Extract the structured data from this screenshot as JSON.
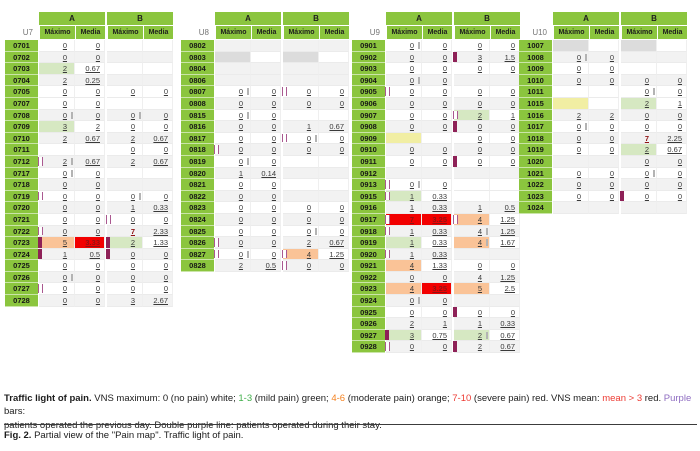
{
  "columns": {
    "group_a": "A",
    "group_b": "B",
    "max": "Máximo",
    "media": "Media"
  },
  "colors": {
    "header_green": "#8bc53e",
    "mild_pain_green": "#d6e8c2",
    "moderate_pain_orange": "#fac397",
    "severe_pain_red": "#f20000",
    "yellow_cell": "#f1eea3",
    "gray_cell": "#dcdcdc",
    "light_blue_cell": "#d8e8f3",
    "purple_bar": "#8e2157",
    "purple_line": "#aa5990",
    "mean_red_text": "#8f1313",
    "legend_green": "#3fae49",
    "legend_orange": "#f5821f",
    "legend_red": "#ed3b33",
    "legend_purple": "#8e6cc1"
  },
  "units": [
    {
      "name": "U7",
      "rows": [
        {
          "id": "0701",
          "a": {
            "mx": "0",
            "md": "0"
          }
        },
        {
          "id": "0702",
          "a": {
            "mx": "0",
            "md": "0"
          }
        },
        {
          "id": "0703",
          "a": {
            "mx": "2",
            "c": "g",
            "md": "0.67"
          }
        },
        {
          "id": "0704",
          "a": {
            "mx": "2",
            "c": "g",
            "md": "0.25"
          }
        },
        {
          "id": "0705",
          "a": {
            "mx": "0",
            "md": "0"
          },
          "b": {
            "mx": "0",
            "md": "0"
          }
        },
        {
          "id": "0707",
          "a": {
            "mx": "0",
            "md": "0"
          }
        },
        {
          "id": "0708",
          "a": {
            "mx": "0",
            "md": "0",
            "gb": true
          },
          "b": {
            "mx": "0",
            "md": "0",
            "gb": true
          }
        },
        {
          "id": "0709",
          "a": {
            "mx": "3",
            "c": "g",
            "md": "2"
          },
          "b": {
            "mx": "0",
            "md": "0"
          }
        },
        {
          "id": "0710",
          "a": {
            "mx": "2",
            "c": "g",
            "md": "0.67"
          },
          "b": {
            "mx": "2",
            "c": "g",
            "md": "0.67"
          }
        },
        {
          "id": "0711",
          "b": {
            "mx": "0",
            "md": "0"
          }
        },
        {
          "id": "0712",
          "a": {
            "mx": "2",
            "c": "g",
            "md": "0.67",
            "mk": "d",
            "gb": true
          },
          "b": {
            "mx": "2",
            "c": "g",
            "md": "0.67"
          }
        },
        {
          "id": "0717",
          "a": {
            "mx": "0",
            "md": "0",
            "gb": true
          }
        },
        {
          "id": "0718",
          "a": {
            "mx": "0",
            "md": "0"
          }
        },
        {
          "id": "0719",
          "a": {
            "mx": "0",
            "md": "0",
            "mk": "d"
          },
          "b": {
            "mx": "0",
            "md": "0",
            "gb": true
          }
        },
        {
          "id": "0720",
          "a": {
            "mx": "0",
            "md": "0"
          },
          "b": {
            "mx": "1",
            "c": "g",
            "md": "0.33"
          }
        },
        {
          "id": "0721",
          "a": {
            "mx": "0",
            "md": "0"
          },
          "b": {
            "mx": "0",
            "md": "0",
            "mk": "d"
          }
        },
        {
          "id": "0722",
          "a": {
            "mx": "0",
            "c": "b",
            "md": "0",
            "mk": "d"
          },
          "b": {
            "mx": "7",
            "c": "r",
            "md": "2.33"
          }
        },
        {
          "id": "0723",
          "a": {
            "mx": "5",
            "c": "o",
            "md": "3.33",
            "mdr": true,
            "mk": "s"
          },
          "b": {
            "mx": "2",
            "c": "g",
            "md": "1.33",
            "mk": "s"
          }
        },
        {
          "id": "0724",
          "a": {
            "mx": "1",
            "c": "g",
            "md": "0.5",
            "mk": "s"
          },
          "b": {
            "mx": "0",
            "md": "0",
            "mk": "s"
          }
        },
        {
          "id": "0725",
          "a": {
            "mx": "0",
            "md": "0"
          },
          "b": {
            "mx": "0",
            "md": "0"
          }
        },
        {
          "id": "0726",
          "a": {
            "mx": "0",
            "md": "0",
            "gb": true
          },
          "b": {
            "mx": "0",
            "md": "0"
          }
        },
        {
          "id": "0727",
          "a": {
            "mx": "0",
            "md": "0",
            "mk": "d"
          },
          "b": {
            "mx": "0",
            "md": "0"
          }
        },
        {
          "id": "0728",
          "a": {
            "mx": "0",
            "md": "0"
          },
          "b": {
            "mx": "3",
            "c": "g",
            "md": "2.67"
          }
        }
      ]
    },
    {
      "name": "U8",
      "rows": [
        {
          "id": "0802",
          "a": {
            "mx": null,
            "c": "gy"
          },
          "b": {
            "mx": null,
            "c": "gy"
          }
        },
        {
          "id": "0803",
          "a": {
            "mx": null,
            "c": "gy"
          },
          "b": {
            "mx": null,
            "c": "gy"
          }
        },
        {
          "id": "0804",
          "a": {
            "mx": null,
            "c": "gy"
          },
          "b": {
            "mx": null,
            "c": "gy"
          }
        },
        {
          "id": "0806",
          "a": {
            "mx": null,
            "c": "gy"
          },
          "b": {
            "mx": null,
            "c": "gy"
          }
        },
        {
          "id": "0807",
          "a": {
            "mx": "0",
            "md": "0",
            "gb": true
          },
          "b": {
            "mx": "0",
            "md": "0",
            "mk": "d"
          }
        },
        {
          "id": "0808",
          "a": {
            "mx": "0",
            "md": "0"
          },
          "b": {
            "mx": "0",
            "md": "0"
          }
        },
        {
          "id": "0815",
          "a": {
            "mx": "0",
            "md": "0",
            "gb": true
          }
        },
        {
          "id": "0816",
          "a": {
            "mx": "0",
            "md": "0"
          },
          "b": {
            "mx": "1",
            "c": "g",
            "md": "0.67"
          }
        },
        {
          "id": "0817",
          "a": {
            "mx": "0",
            "md": "0"
          },
          "b": {
            "mx": "0",
            "md": "0",
            "mk": "d",
            "gb": true
          }
        },
        {
          "id": "0818",
          "a": {
            "mx": "0",
            "md": "0",
            "mk": "d"
          },
          "b": {
            "mx": "0",
            "md": "0"
          }
        },
        {
          "id": "0819",
          "a": {
            "mx": "0",
            "md": "0",
            "gb": true
          }
        },
        {
          "id": "0820",
          "a": {
            "mx": "1",
            "c": "g",
            "md": "0.14"
          }
        },
        {
          "id": "0821",
          "a": {
            "mx": "0",
            "md": "0"
          }
        },
        {
          "id": "0822",
          "a": {
            "mx": "0",
            "md": "0"
          }
        },
        {
          "id": "0823",
          "a": {
            "mx": "0",
            "md": "0"
          },
          "b": {
            "mx": "0",
            "md": "0"
          }
        },
        {
          "id": "0824",
          "a": {
            "mx": "0",
            "md": "0"
          },
          "b": {
            "mx": "0",
            "md": "0"
          }
        },
        {
          "id": "0825",
          "a": {
            "mx": "0",
            "md": "0"
          },
          "b": {
            "mx": "0",
            "md": "0",
            "gb": true
          }
        },
        {
          "id": "0826",
          "a": {
            "mx": "0",
            "md": "0",
            "mk": "d"
          },
          "b": {
            "mx": "2",
            "c": "g",
            "md": "0.67"
          }
        },
        {
          "id": "0827",
          "a": {
            "mx": "0",
            "md": "0",
            "mk": "d",
            "gb": true
          },
          "b": {
            "mx": "4",
            "c": "o",
            "md": "1.25",
            "mk": "d"
          }
        },
        {
          "id": "0828",
          "a": {
            "mx": "2",
            "c": "g",
            "md": "0.5"
          },
          "b": {
            "mx": "0",
            "md": "0",
            "mk": "d"
          }
        }
      ]
    },
    {
      "name": "U9",
      "rows": [
        {
          "id": "0901",
          "a": {
            "mx": "0",
            "md": "0",
            "gb": true
          },
          "b": {
            "mx": "0",
            "md": "0"
          }
        },
        {
          "id": "0902",
          "a": {
            "mx": "0",
            "md": "0"
          },
          "b": {
            "mx": "3",
            "c": "g",
            "md": "1.5",
            "mk": "s"
          }
        },
        {
          "id": "0903",
          "a": {
            "mx": "0",
            "md": "0"
          },
          "b": {
            "mx": "0",
            "md": "0"
          }
        },
        {
          "id": "0904",
          "a": {
            "mx": "0",
            "md": "0",
            "gb": true
          },
          "b": {
            "mx": null,
            "c": "y"
          }
        },
        {
          "id": "0905",
          "a": {
            "mx": "0",
            "md": "0",
            "mk": "d"
          },
          "b": {
            "mx": "0",
            "md": "0"
          }
        },
        {
          "id": "0906",
          "a": {
            "mx": "0",
            "md": "0"
          },
          "b": {
            "mx": "0",
            "md": "0"
          }
        },
        {
          "id": "0907",
          "a": {
            "mx": "0",
            "md": "0"
          },
          "b": {
            "mx": "2",
            "c": "g",
            "md": "1",
            "mk": "d"
          }
        },
        {
          "id": "0908",
          "a": {
            "mx": "0",
            "md": "0"
          },
          "b": {
            "mx": "0",
            "md": "0",
            "mk": "s"
          }
        },
        {
          "id": "0909",
          "a": {
            "mx": null,
            "c": "y"
          },
          "b": {
            "mx": "0",
            "md": "0"
          }
        },
        {
          "id": "0910",
          "a": {
            "mx": "0",
            "md": "0"
          },
          "b": {
            "mx": "0",
            "md": "0"
          }
        },
        {
          "id": "0911",
          "a": {
            "mx": "0",
            "md": "0"
          },
          "b": {
            "mx": "0",
            "md": "0",
            "mk": "s"
          }
        },
        {
          "id": "0912"
        },
        {
          "id": "0913",
          "a": {
            "mx": "0",
            "md": "0",
            "mk": "d",
            "gb": true
          }
        },
        {
          "id": "0915",
          "a": {
            "mx": "1",
            "c": "g",
            "md": "0.33",
            "mk": "d"
          }
        },
        {
          "id": "0916",
          "a": {
            "mx": "1",
            "c": "g",
            "md": "0.33"
          },
          "b": {
            "mx": "1",
            "c": "g",
            "md": "0.5"
          }
        },
        {
          "id": "0917",
          "a": {
            "mx": "7",
            "c": "r",
            "md": "3.25",
            "mdr": true,
            "mk": "d"
          },
          "b": {
            "mx": "4",
            "c": "o",
            "md": "1.25",
            "mk": "d"
          }
        },
        {
          "id": "0918",
          "a": {
            "mx": "1",
            "c": "g",
            "md": "0.33",
            "mk": "d"
          },
          "b": {
            "mx": "4",
            "c": "o",
            "md": "1.25",
            "gb": true
          }
        },
        {
          "id": "0919",
          "a": {
            "mx": "1",
            "c": "g",
            "md": "0.33"
          },
          "b": {
            "mx": "4",
            "c": "o",
            "md": "1.67",
            "gb": true
          }
        },
        {
          "id": "0920",
          "a": {
            "mx": "1",
            "c": "g",
            "md": "0.33",
            "mk": "d"
          }
        },
        {
          "id": "0921",
          "a": {
            "mx": "4",
            "c": "o",
            "md": "1.33"
          },
          "b": {
            "mx": "0",
            "md": "0"
          }
        },
        {
          "id": "0922",
          "a": {
            "mx": "0",
            "md": "0"
          },
          "b": {
            "mx": "4",
            "c": "o",
            "md": "1.25"
          }
        },
        {
          "id": "0923",
          "a": {
            "mx": "4",
            "c": "o",
            "md": "3.25",
            "mdr": true
          },
          "b": {
            "mx": "5",
            "c": "o",
            "md": "2.5"
          }
        },
        {
          "id": "0924",
          "a": {
            "mx": "0",
            "md": "0",
            "gb": true
          }
        },
        {
          "id": "0925",
          "a": {
            "mx": "0",
            "md": "0"
          },
          "b": {
            "mx": "0",
            "md": "0",
            "mk": "s"
          }
        },
        {
          "id": "0926",
          "a": {
            "mx": "2",
            "c": "g",
            "md": "1"
          },
          "b": {
            "mx": "1",
            "c": "g",
            "md": "0.33"
          }
        },
        {
          "id": "0927",
          "a": {
            "mx": "3",
            "c": "g",
            "md": "0.75",
            "mk": "s"
          },
          "b": {
            "mx": "2",
            "c": "g",
            "md": "0.67",
            "gb": true
          }
        },
        {
          "id": "0928",
          "a": {
            "mx": "0",
            "md": "0",
            "mk": "d"
          },
          "b": {
            "mx": "2",
            "c": "g",
            "md": "0.67",
            "mk": "s"
          }
        }
      ]
    },
    {
      "name": "U10",
      "rows": [
        {
          "id": "1007",
          "a": {
            "mx": null,
            "c": "gy"
          },
          "b": {
            "mx": null,
            "c": "gy"
          }
        },
        {
          "id": "1008",
          "a": {
            "mx": "0",
            "md": "0",
            "gb": true
          },
          "b": {
            "mx": null,
            "c": "gy"
          }
        },
        {
          "id": "1009",
          "a": {
            "mx": "0",
            "md": "0"
          }
        },
        {
          "id": "1010",
          "a": {
            "mx": "0",
            "md": "0"
          },
          "b": {
            "mx": "0",
            "md": "0"
          }
        },
        {
          "id": "1011",
          "b": {
            "mx": "0",
            "md": "0",
            "gb": true
          }
        },
        {
          "id": "1015",
          "a": {
            "mx": null,
            "c": "y"
          },
          "b": {
            "mx": "2",
            "c": "g",
            "md": "1"
          }
        },
        {
          "id": "1016",
          "a": {
            "mx": "2",
            "c": "g",
            "md": "2"
          },
          "b": {
            "mx": "0",
            "md": "0"
          }
        },
        {
          "id": "1017",
          "a": {
            "mx": "0",
            "md": "0",
            "gb": true
          },
          "b": {
            "mx": "0",
            "md": "0"
          }
        },
        {
          "id": "1018",
          "a": {
            "mx": "0",
            "md": "0"
          },
          "b": {
            "mx": "7",
            "c": "r",
            "md": "2.25"
          }
        },
        {
          "id": "1019",
          "a": {
            "mx": "0",
            "md": "0"
          },
          "b": {
            "mx": "2",
            "c": "g",
            "md": "0.67"
          }
        },
        {
          "id": "1020",
          "a": {
            "mx": null,
            "c": "gy"
          },
          "b": {
            "mx": "0",
            "md": "0"
          }
        },
        {
          "id": "1021",
          "a": {
            "mx": "0",
            "md": "0"
          },
          "b": {
            "mx": "0",
            "md": "0",
            "gb": true
          }
        },
        {
          "id": "1022",
          "a": {
            "mx": "0",
            "md": "0"
          },
          "b": {
            "mx": "0",
            "md": "0"
          }
        },
        {
          "id": "1023",
          "a": {
            "mx": "0",
            "md": "0"
          },
          "b": {
            "mx": "0",
            "md": "0",
            "mk": "s"
          }
        },
        {
          "id": "1024",
          "b": {
            "mx": null,
            "c": "y"
          }
        }
      ]
    }
  ],
  "legend": {
    "segments": [
      {
        "t": "Traffic light of pain. ",
        "s": "bold"
      },
      {
        "t": "VNS maximum: 0 (no pain) white; ",
        "s": "plain"
      },
      {
        "t": "1-3",
        "s": "green"
      },
      {
        "t": " (mild pain) green; ",
        "s": "plain"
      },
      {
        "t": "4-6",
        "s": "orange"
      },
      {
        "t": " (moderate pain) orange; ",
        "s": "plain"
      },
      {
        "t": "7-10",
        "s": "red"
      },
      {
        "t": " (severe pain) red. VNS mean: ",
        "s": "plain"
      },
      {
        "t": "mean > 3",
        "s": "red"
      },
      {
        "t": " red. ",
        "s": "plain"
      },
      {
        "t": "Purple",
        "s": "purple"
      },
      {
        "t": " bars:",
        "s": "plain"
      },
      {
        "br": true
      },
      {
        "t": "patients operated the previous day. Double purple line: patients operated during their stay.",
        "s": "plain"
      }
    ]
  },
  "fig_caption": {
    "segments": [
      {
        "t": "Fig. 2.",
        "s": "bold"
      },
      {
        "t": " Partial view of the \"Pain map\". Traffic light of pain.",
        "s": "plain"
      }
    ]
  }
}
